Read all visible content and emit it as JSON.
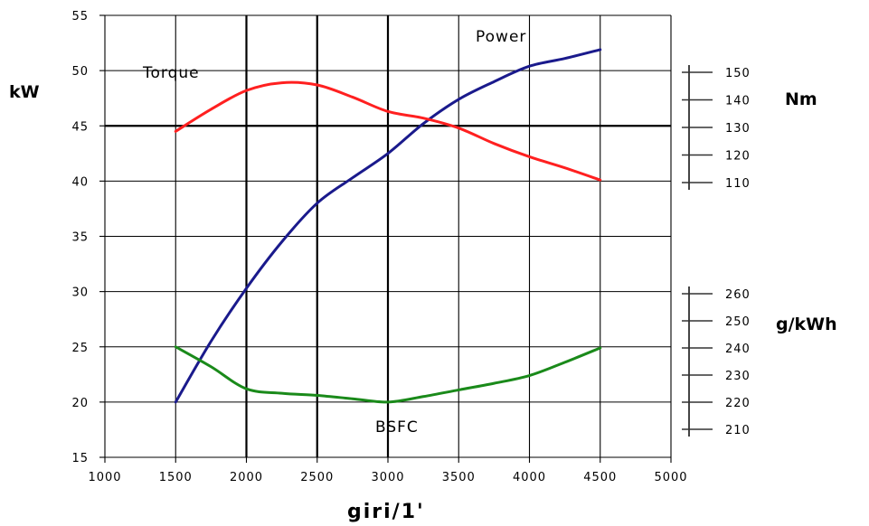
{
  "chart_data": {
    "type": "line",
    "xlabel": "giri/1'",
    "xlim": [
      1000,
      5000
    ],
    "x_ticks": [
      "1000",
      "1500",
      "2000",
      "2500",
      "3000",
      "3500",
      "4000",
      "4500",
      "5000"
    ],
    "ylabel_left": "kW",
    "ylim_left": [
      15,
      55
    ],
    "y_ticks_left": [
      "55",
      "50",
      "45",
      "40",
      "35",
      "30",
      "25",
      "20",
      "15"
    ],
    "torque_axis": {
      "label": "Nm",
      "ticks": [
        "150",
        "140",
        "130",
        "120",
        "110"
      ]
    },
    "bsfc_axis": {
      "label": "g/kWh",
      "ticks": [
        "260",
        "250",
        "240",
        "230",
        "220",
        "210"
      ]
    },
    "series": [
      {
        "name": "Power",
        "color": "#1a1a8c",
        "x": [
          1500,
          1750,
          2000,
          2250,
          2500,
          2750,
          3000,
          3250,
          3500,
          3750,
          4000,
          4250,
          4500
        ],
        "y_kW_scale": [
          20,
          25.5,
          30.3,
          34.5,
          38,
          40.3,
          42.5,
          45.2,
          47.4,
          49,
          50.4,
          51.1,
          51.9
        ]
      },
      {
        "name": "Torque",
        "color": "#ff2020",
        "x": [
          1500,
          1750,
          2000,
          2250,
          2500,
          2750,
          3000,
          3250,
          3500,
          3750,
          4000,
          4250,
          4500
        ],
        "y_kW_scale": [
          44.5,
          46.5,
          48.2,
          48.9,
          48.7,
          47.6,
          46.3,
          45.7,
          44.8,
          43.4,
          42.2,
          41.2,
          40.1
        ]
      },
      {
        "name": "BSFC",
        "color": "#1a8a1a",
        "x": [
          1500,
          1750,
          2000,
          2250,
          2500,
          2750,
          3000,
          3250,
          3500,
          3750,
          4000,
          4250,
          4500
        ],
        "y_kW_scale": [
          25,
          23.2,
          21.2,
          20.8,
          20.6,
          20.3,
          20,
          20.5,
          21.1,
          21.7,
          22.4,
          23.6,
          24.9
        ]
      }
    ],
    "annotations": {
      "power": "Power",
      "torque": "Torque",
      "bsfc": "BSFC"
    }
  }
}
